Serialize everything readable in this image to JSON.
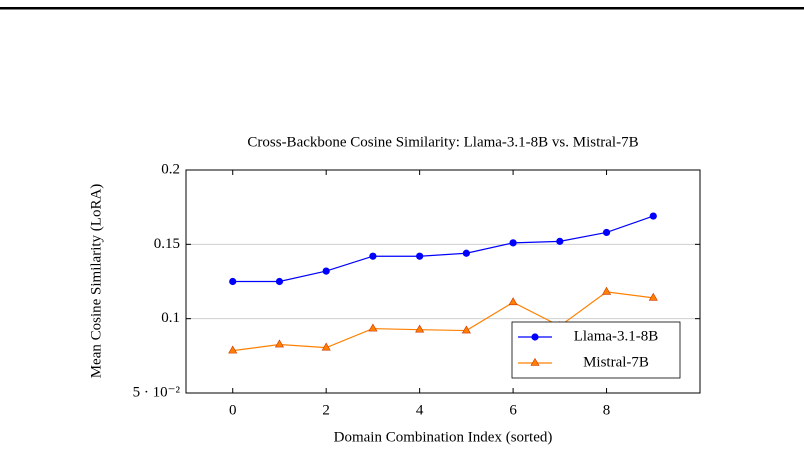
{
  "chart_data": {
    "type": "line",
    "title": "Cross-Backbone Cosine Similarity: Llama-3.1-8B vs. Mistral-7B",
    "xlabel": "Domain Combination Index (sorted)",
    "ylabel": "Mean Cosine Similarity (LoRA)",
    "x": [
      0,
      1,
      2,
      3,
      4,
      5,
      6,
      7,
      8,
      9
    ],
    "series": [
      {
        "name": "Llama-3.1-8B",
        "color": "#0000ff",
        "marker": "circle",
        "values": [
          0.125,
          0.125,
          0.132,
          0.142,
          0.142,
          0.144,
          0.151,
          0.152,
          0.158,
          0.169
        ]
      },
      {
        "name": "Mistral-7B",
        "color": "#ff8000",
        "marker": "triangle",
        "values": [
          0.0785,
          0.0826,
          0.0805,
          0.0933,
          0.0926,
          0.092,
          0.111,
          0.095,
          0.118,
          0.114
        ]
      }
    ],
    "xlim": [
      -1,
      10
    ],
    "xticks": [
      0,
      2,
      4,
      6,
      8
    ],
    "ylim": [
      0.05,
      0.2
    ],
    "yticks": [
      {
        "value": 0.05,
        "label": "5 · 10⁻²"
      },
      0.1,
      0.15,
      0.2
    ],
    "grid": "y",
    "legend": "lower right"
  }
}
